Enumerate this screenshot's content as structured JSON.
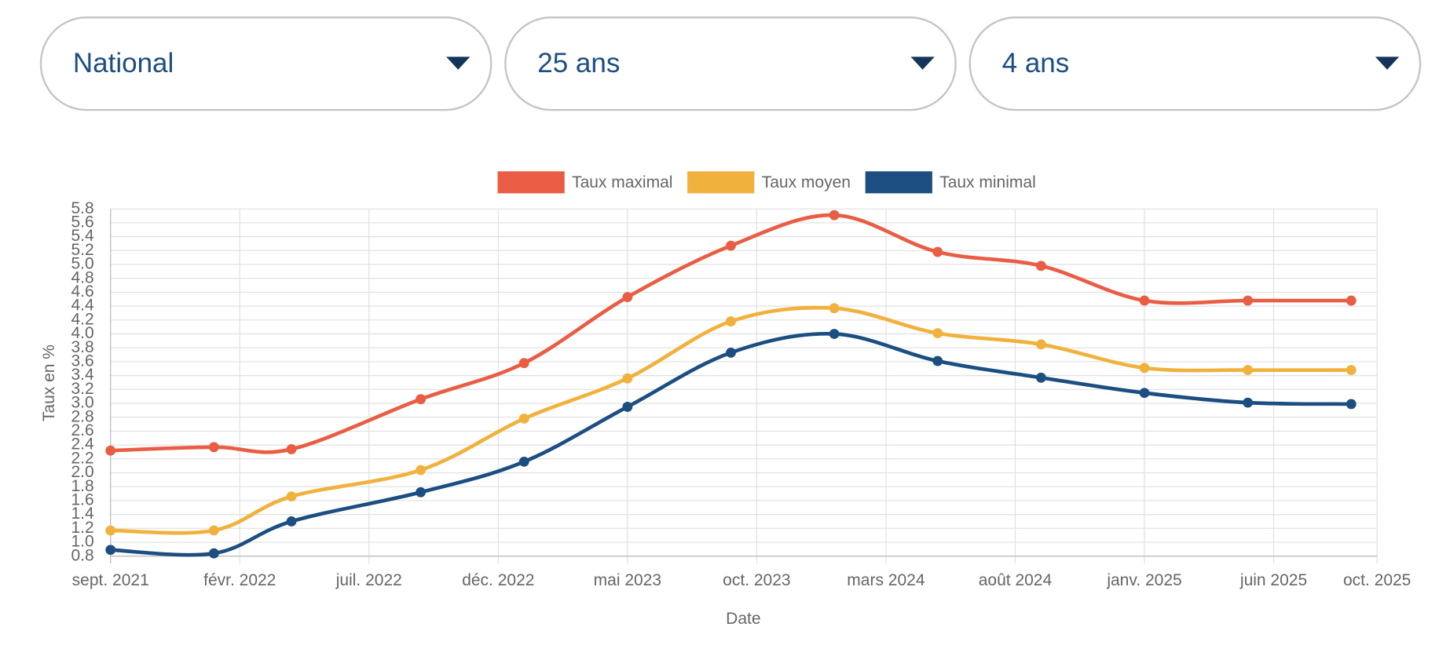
{
  "filters": [
    {
      "label": "National"
    },
    {
      "label": "25 ans"
    },
    {
      "label": "4 ans"
    }
  ],
  "chart_data": {
    "type": "line",
    "x_label": "Date",
    "y_label": "Taux en %",
    "x": [
      "2021-09",
      "2022-01",
      "2022-04",
      "2022-09",
      "2023-01",
      "2023-05",
      "2023-09",
      "2024-01",
      "2024-05",
      "2024-09",
      "2025-01",
      "2025-05",
      "2025-09"
    ],
    "series": [
      {
        "name": "Taux maximal",
        "color": "#e95d45",
        "values": [
          2.32,
          2.37,
          2.34,
          3.06,
          3.58,
          4.53,
          5.27,
          5.71,
          5.18,
          4.98,
          4.48,
          4.48,
          4.48
        ]
      },
      {
        "name": "Taux moyen",
        "color": "#f0b23c",
        "values": [
          1.17,
          1.17,
          1.66,
          2.04,
          2.78,
          3.36,
          4.18,
          4.37,
          4.01,
          3.85,
          3.51,
          3.48,
          3.48
        ]
      },
      {
        "name": "Taux minimal",
        "color": "#1d4e82",
        "values": [
          0.89,
          0.84,
          1.3,
          1.72,
          2.16,
          2.95,
          3.73,
          4.0,
          3.61,
          3.37,
          3.15,
          3.01,
          2.99
        ]
      }
    ],
    "xlim": [
      "2021-09",
      "2025-10"
    ],
    "xticks": [
      {
        "value": "2021-09",
        "label": "sept. 2021"
      },
      {
        "value": "2022-02",
        "label": "févr. 2022"
      },
      {
        "value": "2022-07",
        "label": "juil. 2022"
      },
      {
        "value": "2022-12",
        "label": "déc. 2022"
      },
      {
        "value": "2023-05",
        "label": "mai 2023"
      },
      {
        "value": "2023-10",
        "label": "oct. 2023"
      },
      {
        "value": "2024-03",
        "label": "mars 2024"
      },
      {
        "value": "2024-08",
        "label": "août 2024"
      },
      {
        "value": "2025-01",
        "label": "janv. 2025"
      },
      {
        "value": "2025-06",
        "label": "juin 2025"
      },
      {
        "value": "2025-10",
        "label": "oct. 2025"
      }
    ],
    "ylim": [
      0.8,
      5.8
    ],
    "yticks": [
      0.8,
      {
        "value": 1,
        "label": "1.0"
      },
      1.2,
      1.4,
      1.6,
      1.8,
      {
        "value": 2,
        "label": "2.0"
      },
      2.2,
      2.4,
      2.6,
      2.8,
      {
        "value": 3,
        "label": "3.0"
      },
      3.2,
      3.4,
      3.6,
      3.8,
      {
        "value": 4,
        "label": "4.0"
      },
      4.2,
      4.4,
      4.6,
      4.8,
      {
        "value": 5,
        "label": "5.0"
      },
      5.2,
      5.4,
      5.6,
      5.8
    ],
    "grid": true,
    "legend": "top"
  }
}
